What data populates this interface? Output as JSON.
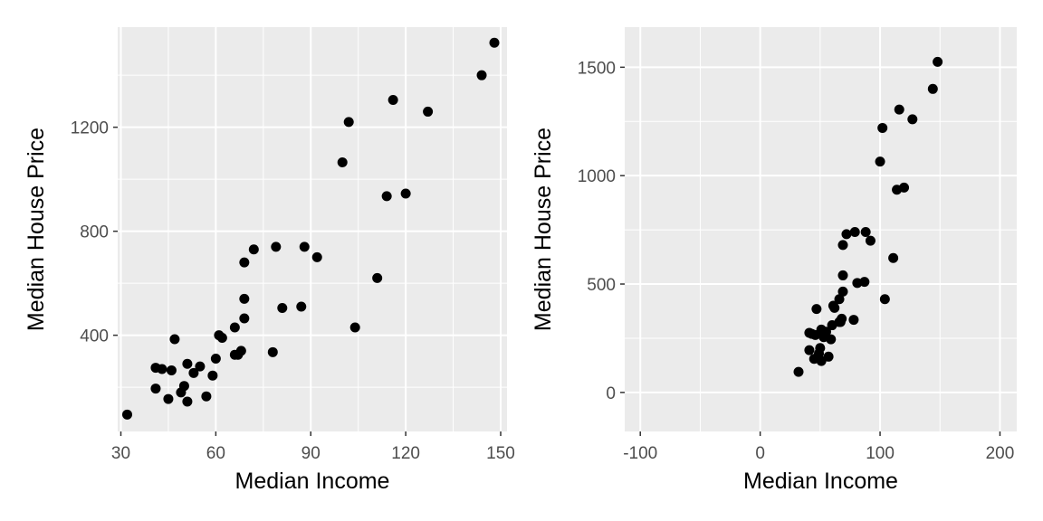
{
  "chart_data": [
    {
      "type": "scatter",
      "xlabel": "Median Income",
      "ylabel": "Median House Price",
      "xlim": [
        29,
        152
      ],
      "ylim": [
        30,
        1585
      ],
      "x_ticks": [
        30,
        60,
        90,
        120,
        150
      ],
      "y_ticks": [
        400,
        800,
        1200
      ],
      "x_tick_labels": [
        "30",
        "60",
        "90",
        "120",
        "150"
      ],
      "y_tick_labels": [
        "400",
        "800",
        "1200"
      ],
      "grid": true,
      "series": [
        {
          "x": [
            32,
            41,
            41,
            43,
            45,
            46,
            47,
            49,
            50,
            51,
            51,
            53,
            55,
            57,
            59,
            60,
            61,
            62,
            66,
            66,
            67,
            68,
            69,
            69,
            69,
            72,
            78,
            79,
            81,
            87,
            88,
            92,
            100,
            102,
            104,
            111,
            114,
            116,
            120,
            127,
            144,
            148
          ],
          "y": [
            95,
            275,
            195,
            270,
            155,
            265,
            385,
            180,
            205,
            145,
            290,
            255,
            280,
            165,
            245,
            310,
            400,
            390,
            325,
            430,
            325,
            340,
            680,
            540,
            465,
            730,
            335,
            740,
            505,
            510,
            740,
            700,
            1065,
            1220,
            430,
            620,
            935,
            1305,
            945,
            1260,
            1400,
            1525
          ]
        }
      ]
    },
    {
      "type": "scatter",
      "xlabel": "Median Income",
      "ylabel": "Median House Price",
      "xlim": [
        -113,
        214
      ],
      "ylim": [
        -180,
        1685
      ],
      "x_ticks": [
        -100,
        0,
        100,
        200
      ],
      "y_ticks": [
        0,
        500,
        1000,
        1500
      ],
      "x_tick_labels": [
        "-100",
        "0",
        "100",
        "200"
      ],
      "y_tick_labels": [
        "0",
        "500",
        "1000",
        "1500"
      ],
      "grid": true,
      "series": [
        {
          "x": [
            32,
            41,
            41,
            43,
            45,
            46,
            47,
            49,
            50,
            51,
            51,
            53,
            55,
            57,
            59,
            60,
            61,
            62,
            66,
            66,
            67,
            68,
            69,
            69,
            69,
            72,
            78,
            79,
            81,
            87,
            88,
            92,
            100,
            102,
            104,
            111,
            114,
            116,
            120,
            127,
            144,
            148
          ],
          "y": [
            95,
            275,
            195,
            270,
            155,
            265,
            385,
            180,
            205,
            145,
            290,
            255,
            280,
            165,
            245,
            310,
            400,
            390,
            325,
            430,
            325,
            340,
            680,
            540,
            465,
            730,
            335,
            740,
            505,
            510,
            740,
            700,
            1065,
            1220,
            430,
            620,
            935,
            1305,
            945,
            1260,
            1400,
            1525
          ]
        }
      ]
    }
  ]
}
